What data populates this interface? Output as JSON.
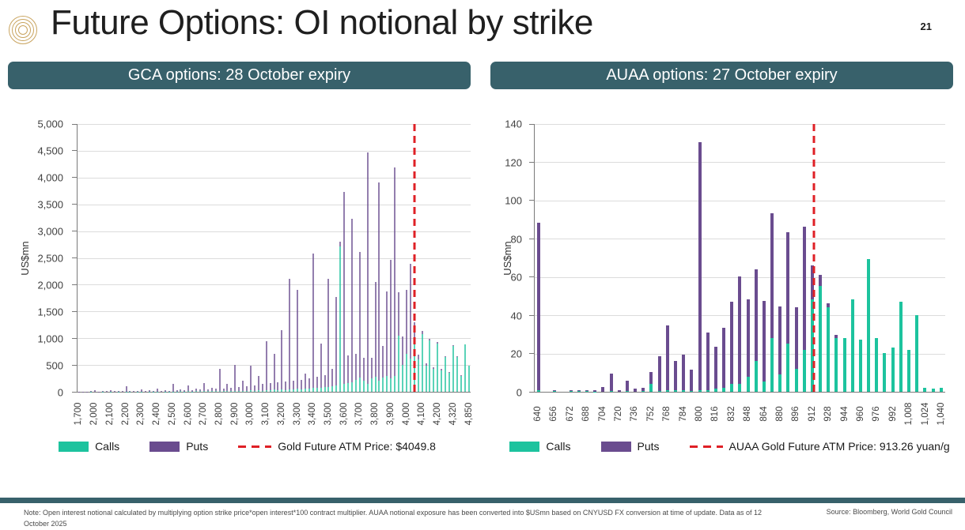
{
  "slide": {
    "title": "Future Options: OI notional by strike",
    "page_number": "21"
  },
  "colors": {
    "header_bg": "#38616B",
    "accent_gold": "#C9A45F",
    "calls_green": "#1DC39E",
    "puts_purple": "#6A4C8F",
    "atm_red": "#DF2026"
  },
  "footer": {
    "note": "Note: Open interest notional calculated by multiplying option strike price*open interest*100 contract multiplier. AUAA notional exposure has been converted into $USmn based on CNYUSD FX conversion at time of update. Data as of 12 October 2025",
    "source": "Source: Bloomberg, World Gold Council"
  },
  "chart_data": [
    {
      "type": "bar",
      "panel_header": "GCA options: 28 October expiry",
      "ylabel": "US$mn",
      "ylim": [
        0,
        5000
      ],
      "grid": true,
      "legend_position": "bottom",
      "y_ticks": [
        "5,000",
        "4,500",
        "4,000",
        "3,500",
        "3,000",
        "2,500",
        "2,000",
        "1,500",
        "1,000",
        "500",
        "0"
      ],
      "x_ticks": [
        "1,700",
        "2,000",
        "2,100",
        "2,200",
        "2,300",
        "2,400",
        "2,500",
        "2,600",
        "2,700",
        "2,800",
        "2,900",
        "3,000",
        "3,100",
        "3,200",
        "3,300",
        "3,400",
        "3,500",
        "3,600",
        "3,700",
        "3,800",
        "3,900",
        "4,000",
        "4,100",
        "4,200",
        "4,320",
        "4,850"
      ],
      "legend": [
        {
          "name": "Calls",
          "color": "#1DC39E"
        },
        {
          "name": "Puts",
          "color": "#6A4C8F"
        }
      ],
      "atm_line": {
        "label": "Gold Future ATM Price: $4049.8",
        "value": 4049.8,
        "color": "#DF2026"
      },
      "series_note": "bars are [strike, calls_notional, puts_notional] stacked, US$mn",
      "bars": [
        [
          1700,
          0,
          6
        ],
        [
          1775,
          0,
          3
        ],
        [
          1850,
          0,
          5
        ],
        [
          1925,
          2,
          8
        ],
        [
          2000,
          0,
          30
        ],
        [
          2025,
          0,
          6
        ],
        [
          2050,
          2,
          12
        ],
        [
          2075,
          0,
          8
        ],
        [
          2100,
          3,
          22
        ],
        [
          2125,
          0,
          10
        ],
        [
          2150,
          2,
          15
        ],
        [
          2175,
          0,
          8
        ],
        [
          2200,
          4,
          95
        ],
        [
          2225,
          2,
          12
        ],
        [
          2250,
          0,
          18
        ],
        [
          2275,
          3,
          10
        ],
        [
          2300,
          2,
          40
        ],
        [
          2325,
          0,
          15
        ],
        [
          2350,
          4,
          20
        ],
        [
          2375,
          2,
          12
        ],
        [
          2400,
          5,
          60
        ],
        [
          2425,
          0,
          18
        ],
        [
          2450,
          6,
          25
        ],
        [
          2475,
          3,
          15
        ],
        [
          2500,
          5,
          140
        ],
        [
          2525,
          4,
          20
        ],
        [
          2550,
          8,
          35
        ],
        [
          2575,
          5,
          22
        ],
        [
          2600,
          10,
          110
        ],
        [
          2625,
          6,
          28
        ],
        [
          2650,
          12,
          45
        ],
        [
          2675,
          8,
          30
        ],
        [
          2700,
          10,
          150
        ],
        [
          2725,
          8,
          40
        ],
        [
          2750,
          15,
          60
        ],
        [
          2775,
          10,
          45
        ],
        [
          2800,
          12,
          410
        ],
        [
          2825,
          10,
          55
        ],
        [
          2850,
          15,
          130
        ],
        [
          2875,
          12,
          65
        ],
        [
          2900,
          18,
          480
        ],
        [
          2925,
          14,
          80
        ],
        [
          2950,
          20,
          180
        ],
        [
          2975,
          15,
          95
        ],
        [
          3000,
          25,
          460
        ],
        [
          3025,
          18,
          100
        ],
        [
          3050,
          30,
          260
        ],
        [
          3075,
          20,
          120
        ],
        [
          3100,
          35,
          900
        ],
        [
          3125,
          25,
          130
        ],
        [
          3150,
          40,
          660
        ],
        [
          3175,
          30,
          140
        ],
        [
          3200,
          45,
          1100
        ],
        [
          3225,
          35,
          150
        ],
        [
          3250,
          40,
          2060
        ],
        [
          3275,
          45,
          160
        ],
        [
          3300,
          55,
          1845
        ],
        [
          3325,
          50,
          170
        ],
        [
          3350,
          60,
          280
        ],
        [
          3375,
          65,
          190
        ],
        [
          3400,
          70,
          2510
        ],
        [
          3425,
          75,
          210
        ],
        [
          3450,
          80,
          810
        ],
        [
          3475,
          85,
          230
        ],
        [
          3500,
          95,
          2005
        ],
        [
          3525,
          100,
          320
        ],
        [
          3550,
          120,
          1650
        ],
        [
          3575,
          2700,
          100
        ],
        [
          3600,
          150,
          3570
        ],
        [
          3625,
          160,
          520
        ],
        [
          3650,
          180,
          3040
        ],
        [
          3675,
          220,
          480
        ],
        [
          3700,
          260,
          2340
        ],
        [
          3725,
          210,
          420
        ],
        [
          3750,
          150,
          4300
        ],
        [
          3775,
          250,
          380
        ],
        [
          3800,
          280,
          1770
        ],
        [
          3825,
          200,
          3700
        ],
        [
          3850,
          260,
          600
        ],
        [
          3875,
          300,
          1570
        ],
        [
          3900,
          250,
          2200
        ],
        [
          3925,
          300,
          3875
        ],
        [
          3950,
          1050,
          800
        ],
        [
          3975,
          500,
          530
        ],
        [
          4000,
          700,
          1200
        ],
        [
          4025,
          620,
          1760
        ],
        [
          4050,
          900,
          400
        ],
        [
          4075,
          600,
          90
        ],
        [
          4100,
          1070,
          70
        ],
        [
          4125,
          480,
          45
        ],
        [
          4150,
          950,
          40
        ],
        [
          4175,
          430,
          30
        ],
        [
          4200,
          900,
          30
        ],
        [
          4230,
          400,
          20
        ],
        [
          4260,
          640,
          15
        ],
        [
          4290,
          350,
          12
        ],
        [
          4320,
          860,
          10
        ],
        [
          4450,
          650,
          6
        ],
        [
          4580,
          300,
          5
        ],
        [
          4710,
          880,
          5
        ],
        [
          4850,
          480,
          4
        ]
      ]
    },
    {
      "type": "bar",
      "panel_header": "AUAA options: 27 October expiry",
      "ylabel": "US$mn",
      "ylim": [
        0,
        140
      ],
      "grid": true,
      "legend_position": "bottom",
      "y_ticks": [
        "140",
        "120",
        "100",
        "80",
        "60",
        "40",
        "20",
        "0"
      ],
      "x_ticks": [
        "640",
        "656",
        "672",
        "688",
        "704",
        "720",
        "736",
        "752",
        "768",
        "784",
        "800",
        "816",
        "832",
        "848",
        "864",
        "880",
        "896",
        "912",
        "928",
        "944",
        "960",
        "976",
        "992",
        "1,008",
        "1,024",
        "1,040"
      ],
      "legend": [
        {
          "name": "Calls",
          "color": "#1DC39E"
        },
        {
          "name": "Puts",
          "color": "#6A4C8F"
        }
      ],
      "atm_line": {
        "label": "AUAA Gold Future ATM Price: 913.26 yuan/g",
        "value": 913.26,
        "color": "#DF2026"
      },
      "series_note": "bars are [strike, calls_notional, puts_notional] stacked, US$mn",
      "bars": [
        [
          640,
          1,
          87
        ],
        [
          648,
          0,
          0
        ],
        [
          656,
          0.3,
          0.5
        ],
        [
          664,
          0,
          0
        ],
        [
          672,
          0.4,
          0.6
        ],
        [
          680,
          0.3,
          0.7
        ],
        [
          688,
          0.3,
          0.5
        ],
        [
          696,
          0.2,
          0.5
        ],
        [
          704,
          0,
          2.5
        ],
        [
          712,
          0.3,
          9
        ],
        [
          720,
          0,
          1
        ],
        [
          728,
          0.3,
          5.5
        ],
        [
          736,
          0,
          1.5
        ],
        [
          744,
          0.3,
          1.7
        ],
        [
          752,
          4,
          6.5
        ],
        [
          760,
          0.5,
          18
        ],
        [
          768,
          1,
          33.5
        ],
        [
          776,
          1,
          15
        ],
        [
          784,
          1,
          18.5
        ],
        [
          792,
          0.5,
          11
        ],
        [
          800,
          1,
          129
        ],
        [
          808,
          1,
          30
        ],
        [
          816,
          1.5,
          22
        ],
        [
          824,
          2,
          31.5
        ],
        [
          832,
          4,
          43
        ],
        [
          840,
          4,
          56
        ],
        [
          848,
          8,
          40
        ],
        [
          856,
          16,
          48
        ],
        [
          864,
          5.5,
          42
        ],
        [
          872,
          28,
          65
        ],
        [
          880,
          9,
          35.5
        ],
        [
          888,
          25,
          58
        ],
        [
          896,
          12,
          32
        ],
        [
          904,
          22,
          64
        ],
        [
          912,
          48,
          18
        ],
        [
          920,
          55,
          6
        ],
        [
          928,
          44,
          2
        ],
        [
          936,
          28,
          1.5
        ],
        [
          944,
          28,
          0
        ],
        [
          952,
          48,
          0
        ],
        [
          960,
          27,
          0
        ],
        [
          968,
          69,
          0
        ],
        [
          976,
          28,
          0
        ],
        [
          984,
          20,
          0
        ],
        [
          992,
          23,
          0
        ],
        [
          1000,
          47,
          0
        ],
        [
          1008,
          22,
          0
        ],
        [
          1016,
          40,
          0
        ],
        [
          1024,
          2,
          0
        ],
        [
          1032,
          1.5,
          0
        ],
        [
          1040,
          2,
          0
        ]
      ]
    }
  ]
}
